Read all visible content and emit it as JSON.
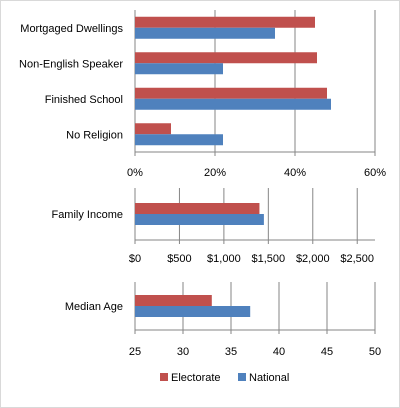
{
  "legend": [
    {
      "name": "Electorate",
      "color": "#c0504d"
    },
    {
      "name": "National",
      "color": "#4f81bd"
    }
  ],
  "chart_data": [
    {
      "type": "bar",
      "orientation": "horizontal",
      "categories": [
        "Mortgaged Dwellings",
        "Non-English Speaker",
        "Finished School",
        "No Religion"
      ],
      "series": [
        {
          "name": "Electorate",
          "values": [
            45,
            45.5,
            48,
            9
          ]
        },
        {
          "name": "National",
          "values": [
            35,
            22,
            49,
            22
          ]
        }
      ],
      "xlim": [
        0,
        60
      ],
      "ticks": [
        "0%",
        "20%",
        "40%",
        "60%"
      ],
      "tick_values": [
        0,
        20,
        40,
        60
      ],
      "grid": true
    },
    {
      "type": "bar",
      "orientation": "horizontal",
      "categories": [
        "Family Income"
      ],
      "series": [
        {
          "name": "Electorate",
          "values": [
            1400
          ]
        },
        {
          "name": "National",
          "values": [
            1450
          ]
        }
      ],
      "xlim": [
        0,
        2700
      ],
      "ticks": [
        "$0",
        "$500",
        "$1,000",
        "$1,500",
        "$2,000",
        "$2,500"
      ],
      "tick_values": [
        0,
        500,
        1000,
        1500,
        2000,
        2500
      ],
      "grid": true
    },
    {
      "type": "bar",
      "orientation": "horizontal",
      "categories": [
        "Median Age"
      ],
      "series": [
        {
          "name": "Electorate",
          "values": [
            33
          ]
        },
        {
          "name": "National",
          "values": [
            37
          ]
        }
      ],
      "xlim": [
        25,
        50
      ],
      "ticks": [
        "25",
        "30",
        "35",
        "40",
        "45",
        "50"
      ],
      "tick_values": [
        25,
        30,
        35,
        40,
        45,
        50
      ],
      "grid": true
    }
  ]
}
